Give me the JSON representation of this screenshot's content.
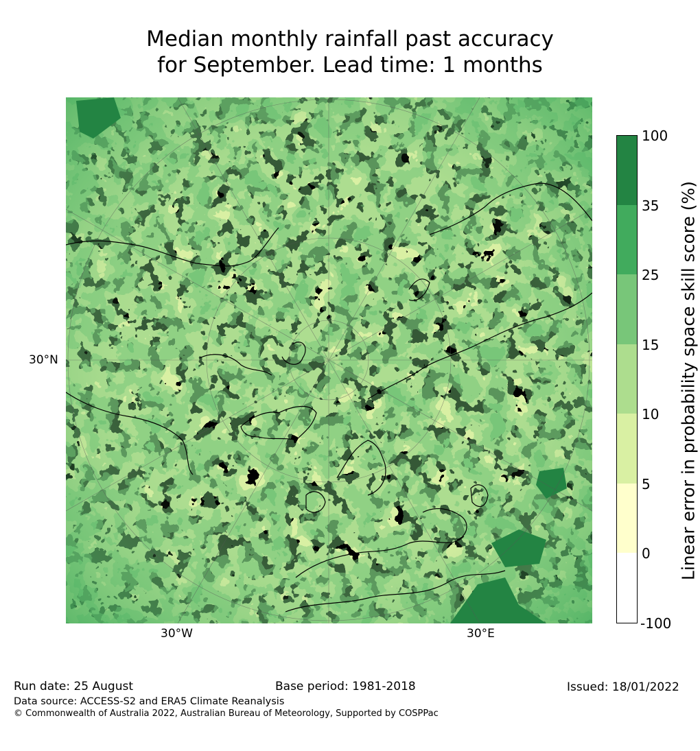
{
  "title_line1": "Median monthly rainfall past accuracy",
  "title_line2": "for September. Lead time: 1 months",
  "map_ticks": {
    "lat_left": "30°N",
    "lon_left": "30°W",
    "lon_right": "30°E"
  },
  "colorbar": {
    "title": "Linear error in probability space skill score (%)",
    "levels": [
      "-100",
      "0",
      "5",
      "10",
      "15",
      "25",
      "35",
      "100"
    ],
    "colors": [
      "#ffffff",
      "#ffffcc",
      "#d9f0a3",
      "#addd8e",
      "#78c679",
      "#41ab5d",
      "#238443"
    ]
  },
  "footer": {
    "run_date": "Run date: 25 August",
    "base_period": "Base period: 1981-2018",
    "issued": "Issued: 18/01/2022",
    "data_source": "Data source: ACCESS-S2 and ERA5 Climate Reanalysis",
    "copyright": "© Commonwealth of Australia 2022, Australian Bureau of Meteorology, Supported by COSPPac"
  }
}
